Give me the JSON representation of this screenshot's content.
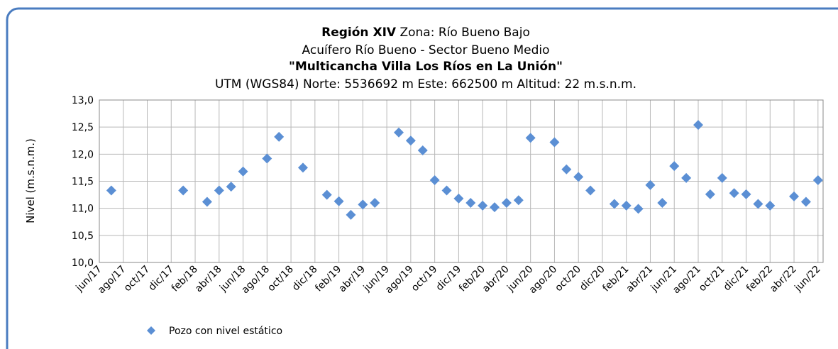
{
  "chart_data": {
    "type": "scatter",
    "title": {
      "region": "Región XIV",
      "zone": "Zona: Río Bueno Bajo"
    },
    "subtitle": "Acuífero Río Bueno - Sector Bueno Medio",
    "station": "\"Multicancha Villa Los Ríos en La Unión\"",
    "location": "UTM (WGS84) Norte: 5536692 m Este: 662500 m  Altitud: 22 m.s.n.m.",
    "ylabel": "Nivel (m.s.n.m.)",
    "categories": [
      "jun/17",
      null,
      "ago/17",
      null,
      "oct/17",
      null,
      "dic/17",
      null,
      "feb/18",
      null,
      "abr/18",
      null,
      "jun/18",
      null,
      "ago/18",
      null,
      "oct/18",
      null,
      "dic/18",
      null,
      "feb/19",
      null,
      "abr/19",
      null,
      "jun/19",
      null,
      "ago/19",
      null,
      "oct/19",
      null,
      "dic/19",
      null,
      "feb/20",
      null,
      "abr/20",
      null,
      "jun/20",
      null,
      "ago/20",
      null,
      "oct/20",
      null,
      "dic/20",
      null,
      "feb/21",
      null,
      "abr/21",
      null,
      "jun/21",
      null,
      "ago/21",
      null,
      "oct/21",
      null,
      "dic/21",
      null,
      "feb/22",
      null,
      "abr/22",
      null,
      "jun/22"
    ],
    "series": [
      {
        "name": "Pozo con nivel estático",
        "color": "#5b8fd4",
        "values": [
          null,
          11.33,
          null,
          null,
          null,
          null,
          null,
          11.33,
          null,
          11.12,
          11.33,
          11.4,
          11.68,
          null,
          11.92,
          12.32,
          null,
          11.75,
          null,
          11.25,
          11.13,
          10.88,
          11.07,
          11.1,
          null,
          12.4,
          12.25,
          12.07,
          11.52,
          11.33,
          11.18,
          11.1,
          11.05,
          11.02,
          11.1,
          11.15,
          12.3,
          null,
          12.22,
          11.72,
          11.58,
          11.33,
          null,
          11.08,
          11.05,
          10.99,
          11.43,
          11.1,
          11.78,
          11.56,
          12.54,
          11.26,
          11.56,
          11.28,
          11.26,
          11.08,
          11.05,
          null,
          11.22,
          11.12,
          11.52
        ]
      }
    ],
    "ylim": [
      10,
      13
    ],
    "yticks": [
      {
        "value": 10,
        "label": "10,0"
      },
      {
        "value": 10.5,
        "label": "10,5"
      },
      {
        "value": 11,
        "label": "11,0"
      },
      {
        "value": 11.5,
        "label": "11,5"
      },
      {
        "value": 12,
        "label": "12,0"
      },
      {
        "value": 12.5,
        "label": "12,5"
      },
      {
        "value": 13,
        "label": "13,0"
      }
    ],
    "grid": true,
    "legend": "bottom-left"
  }
}
